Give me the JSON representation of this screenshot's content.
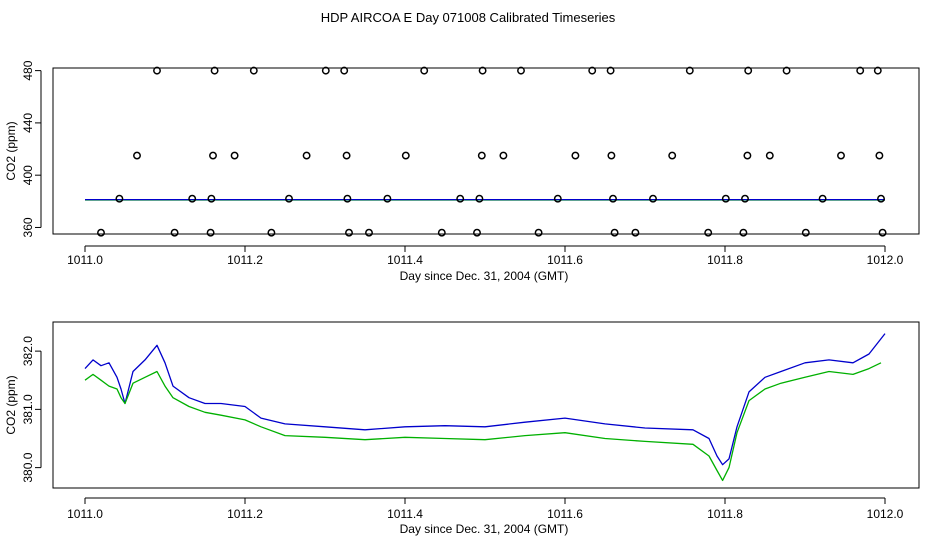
{
  "title": "HDP AIRCOA E  Day 071008  Calibrated Timeseries",
  "chart_data": [
    {
      "type": "scatter",
      "xlabel": "Day since Dec. 31, 2004 (GMT)",
      "ylabel": "CO2 (ppm)",
      "xlim": [
        1011.0,
        1012.0
      ],
      "ylim": [
        355,
        482
      ],
      "x_ticks": [
        "1011.0",
        "1011.2",
        "1011.4",
        "1011.6",
        "1011.8",
        "1012.0"
      ],
      "y_ticks": [
        "360",
        "400",
        "440",
        "480"
      ],
      "x_tick_values": [
        1011.0,
        1011.2,
        1011.4,
        1011.6,
        1011.8,
        1012.0
      ],
      "y_tick_values": [
        360,
        400,
        440,
        480
      ],
      "colors": {
        "points": "#000000",
        "series_green": "#00b000",
        "series_blue": "#0000cc"
      },
      "points": [
        [
          1011.09,
          480
        ],
        [
          1011.162,
          480
        ],
        [
          1011.211,
          480
        ],
        [
          1011.301,
          480
        ],
        [
          1011.324,
          480
        ],
        [
          1011.424,
          480
        ],
        [
          1011.497,
          480
        ],
        [
          1011.545,
          480
        ],
        [
          1011.634,
          480
        ],
        [
          1011.657,
          480
        ],
        [
          1011.756,
          480
        ],
        [
          1011.829,
          480
        ],
        [
          1011.877,
          480
        ],
        [
          1011.969,
          480
        ],
        [
          1011.991,
          480
        ],
        [
          1011.065,
          415
        ],
        [
          1011.16,
          415
        ],
        [
          1011.187,
          415
        ],
        [
          1011.277,
          415
        ],
        [
          1011.327,
          415
        ],
        [
          1011.401,
          415
        ],
        [
          1011.496,
          415
        ],
        [
          1011.523,
          415
        ],
        [
          1011.613,
          415
        ],
        [
          1011.658,
          415
        ],
        [
          1011.734,
          415
        ],
        [
          1011.828,
          415
        ],
        [
          1011.856,
          415
        ],
        [
          1011.945,
          415
        ],
        [
          1011.993,
          415
        ],
        [
          1011.043,
          382
        ],
        [
          1011.134,
          382
        ],
        [
          1011.158,
          382
        ],
        [
          1011.255,
          382
        ],
        [
          1011.328,
          382
        ],
        [
          1011.378,
          382
        ],
        [
          1011.469,
          382
        ],
        [
          1011.493,
          382
        ],
        [
          1011.591,
          382
        ],
        [
          1011.66,
          382
        ],
        [
          1011.71,
          382
        ],
        [
          1011.801,
          382
        ],
        [
          1011.825,
          382
        ],
        [
          1011.922,
          382
        ],
        [
          1011.995,
          382
        ],
        [
          1011.02,
          356
        ],
        [
          1011.112,
          356
        ],
        [
          1011.157,
          356
        ],
        [
          1011.233,
          356
        ],
        [
          1011.33,
          356
        ],
        [
          1011.355,
          356
        ],
        [
          1011.446,
          356
        ],
        [
          1011.49,
          356
        ],
        [
          1011.567,
          356
        ],
        [
          1011.662,
          356
        ],
        [
          1011.688,
          356
        ],
        [
          1011.779,
          356
        ],
        [
          1011.823,
          356
        ],
        [
          1011.901,
          356
        ],
        [
          1011.997,
          356
        ]
      ],
      "series": [
        {
          "color": "#00b000",
          "values": [
            [
              1011.0,
              381.0
            ],
            [
              1012.0,
              381.0
            ]
          ]
        },
        {
          "color": "#0000cc",
          "values": [
            [
              1011.0,
              381.3
            ],
            [
              1012.0,
              381.3
            ]
          ]
        }
      ]
    },
    {
      "type": "line",
      "xlabel": "Day since Dec. 31, 2004 (GMT)",
      "ylabel": "CO2 (ppm)",
      "xlim": [
        1011.0,
        1012.0
      ],
      "ylim": [
        379.65,
        382.5
      ],
      "x_ticks": [
        "1011.0",
        "1011.2",
        "1011.4",
        "1011.6",
        "1011.8",
        "1012.0"
      ],
      "y_ticks": [
        "380.0",
        "381.0",
        "382.0"
      ],
      "x_tick_values": [
        1011.0,
        1011.2,
        1011.4,
        1011.6,
        1011.8,
        1012.0
      ],
      "y_tick_values": [
        380.0,
        381.0,
        382.0
      ],
      "series": [
        {
          "color": "#0000cc",
          "values": [
            [
              1011.0,
              381.7
            ],
            [
              1011.01,
              381.85
            ],
            [
              1011.02,
              381.75
            ],
            [
              1011.03,
              381.8
            ],
            [
              1011.04,
              381.55
            ],
            [
              1011.045,
              381.35
            ],
            [
              1011.05,
              381.1
            ],
            [
              1011.06,
              381.65
            ],
            [
              1011.075,
              381.85
            ],
            [
              1011.09,
              382.1
            ],
            [
              1011.1,
              381.8
            ],
            [
              1011.11,
              381.4
            ],
            [
              1011.13,
              381.2
            ],
            [
              1011.15,
              381.1
            ],
            [
              1011.17,
              381.1
            ],
            [
              1011.2,
              381.05
            ],
            [
              1011.22,
              380.85
            ],
            [
              1011.25,
              380.75
            ],
            [
              1011.3,
              380.7
            ],
            [
              1011.35,
              380.65
            ],
            [
              1011.4,
              380.7
            ],
            [
              1011.45,
              380.72
            ],
            [
              1011.5,
              380.7
            ],
            [
              1011.55,
              380.78
            ],
            [
              1011.6,
              380.85
            ],
            [
              1011.65,
              380.75
            ],
            [
              1011.7,
              380.68
            ],
            [
              1011.76,
              380.65
            ],
            [
              1011.78,
              380.5
            ],
            [
              1011.79,
              380.2
            ],
            [
              1011.797,
              380.05
            ],
            [
              1011.805,
              380.15
            ],
            [
              1011.815,
              380.7
            ],
            [
              1011.83,
              381.3
            ],
            [
              1011.85,
              381.55
            ],
            [
              1011.87,
              381.65
            ],
            [
              1011.9,
              381.8
            ],
            [
              1011.93,
              381.85
            ],
            [
              1011.96,
              381.8
            ],
            [
              1011.98,
              381.95
            ],
            [
              1012.0,
              382.3
            ]
          ]
        },
        {
          "color": "#00b000",
          "values": [
            [
              1011.0,
              381.5
            ],
            [
              1011.01,
              381.6
            ],
            [
              1011.02,
              381.5
            ],
            [
              1011.03,
              381.4
            ],
            [
              1011.04,
              381.35
            ],
            [
              1011.045,
              381.2
            ],
            [
              1011.05,
              381.1
            ],
            [
              1011.06,
              381.45
            ],
            [
              1011.075,
              381.55
            ],
            [
              1011.09,
              381.65
            ],
            [
              1011.1,
              381.4
            ],
            [
              1011.11,
              381.2
            ],
            [
              1011.13,
              381.05
            ],
            [
              1011.15,
              380.95
            ],
            [
              1011.17,
              380.9
            ],
            [
              1011.2,
              380.82
            ],
            [
              1011.22,
              380.7
            ],
            [
              1011.25,
              380.55
            ],
            [
              1011.3,
              380.52
            ],
            [
              1011.35,
              380.48
            ],
            [
              1011.4,
              380.52
            ],
            [
              1011.45,
              380.5
            ],
            [
              1011.5,
              380.48
            ],
            [
              1011.55,
              380.55
            ],
            [
              1011.6,
              380.6
            ],
            [
              1011.65,
              380.5
            ],
            [
              1011.7,
              380.45
            ],
            [
              1011.76,
              380.4
            ],
            [
              1011.78,
              380.2
            ],
            [
              1011.79,
              379.95
            ],
            [
              1011.797,
              379.78
            ],
            [
              1011.805,
              380.0
            ],
            [
              1011.815,
              380.6
            ],
            [
              1011.83,
              381.15
            ],
            [
              1011.85,
              381.35
            ],
            [
              1011.87,
              381.45
            ],
            [
              1011.9,
              381.55
            ],
            [
              1011.93,
              381.65
            ],
            [
              1011.96,
              381.6
            ],
            [
              1011.98,
              381.7
            ],
            [
              1011.995,
              381.8
            ]
          ]
        }
      ]
    }
  ]
}
